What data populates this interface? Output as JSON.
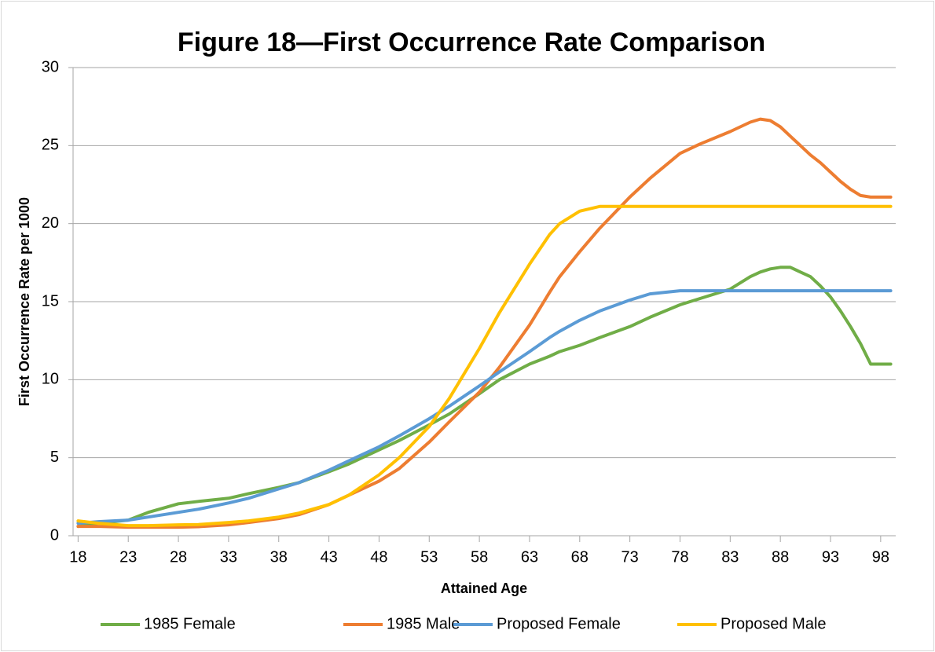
{
  "chart_data": {
    "type": "line",
    "title": "Figure 18—First Occurrence Rate Comparison",
    "x_label": "Attained Age",
    "y_label": "First Occurrence Rate per 1000",
    "x": [
      18,
      20,
      23,
      25,
      28,
      30,
      33,
      35,
      38,
      40,
      43,
      45,
      48,
      50,
      53,
      55,
      58,
      60,
      63,
      65,
      66,
      68,
      70,
      73,
      75,
      78,
      80,
      83,
      85,
      86,
      87,
      88,
      89,
      90,
      91,
      92,
      93,
      94,
      95,
      96,
      97,
      98,
      99
    ],
    "series": [
      {
        "name": "1985 Female",
        "color": "#70ad47",
        "values": [
          0.6,
          0.8,
          1.0,
          1.5,
          2.05,
          2.2,
          2.4,
          2.7,
          3.1,
          3.4,
          4.1,
          4.6,
          5.5,
          6.1,
          7.1,
          7.8,
          9.1,
          10.0,
          11.0,
          11.5,
          11.8,
          12.2,
          12.7,
          13.4,
          14.0,
          14.8,
          15.2,
          15.8,
          16.6,
          16.9,
          17.1,
          17.2,
          17.2,
          16.9,
          16.6,
          16.0,
          15.3,
          14.4,
          13.4,
          12.3,
          11.0,
          11.0,
          11.0
        ]
      },
      {
        "name": "1985 Male",
        "color": "#ed7d31",
        "values": [
          0.6,
          0.6,
          0.55,
          0.55,
          0.55,
          0.58,
          0.7,
          0.85,
          1.1,
          1.35,
          2.0,
          2.6,
          3.5,
          4.3,
          6.0,
          7.3,
          9.2,
          10.8,
          13.5,
          15.6,
          16.6,
          18.2,
          19.7,
          21.7,
          22.9,
          24.5,
          25.1,
          25.9,
          26.5,
          26.7,
          26.6,
          26.2,
          25.6,
          25.0,
          24.4,
          23.9,
          23.3,
          22.7,
          22.2,
          21.8,
          21.7,
          21.7,
          21.7
        ]
      },
      {
        "name": "Proposed Female",
        "color": "#5b9bd5",
        "values": [
          0.8,
          0.9,
          1.0,
          1.2,
          1.5,
          1.7,
          2.1,
          2.4,
          3.0,
          3.4,
          4.2,
          4.8,
          5.7,
          6.4,
          7.5,
          8.3,
          9.6,
          10.5,
          11.8,
          12.7,
          13.1,
          13.8,
          14.4,
          15.1,
          15.5,
          15.7,
          15.7,
          15.7,
          15.7,
          15.7,
          15.7,
          15.7,
          15.7,
          15.7,
          15.7,
          15.7,
          15.7,
          15.7,
          15.7,
          15.7,
          15.7,
          15.7,
          15.7
        ]
      },
      {
        "name": "Proposed Male",
        "color": "#ffc000",
        "values": [
          0.95,
          0.8,
          0.65,
          0.65,
          0.7,
          0.72,
          0.85,
          0.95,
          1.2,
          1.45,
          2.0,
          2.6,
          3.9,
          5.0,
          7.0,
          8.8,
          12.0,
          14.3,
          17.4,
          19.3,
          20.0,
          20.8,
          21.1,
          21.1,
          21.1,
          21.1,
          21.1,
          21.1,
          21.1,
          21.1,
          21.1,
          21.1,
          21.1,
          21.1,
          21.1,
          21.1,
          21.1,
          21.1,
          21.1,
          21.1,
          21.1,
          21.1,
          21.1
        ]
      }
    ],
    "xlim": [
      17.5,
      99.5
    ],
    "xticks": [
      18,
      23,
      28,
      33,
      38,
      43,
      48,
      53,
      58,
      63,
      68,
      73,
      78,
      83,
      88,
      93,
      98
    ],
    "ylim": [
      0,
      30
    ],
    "yticks": [
      0,
      5,
      10,
      15,
      20,
      25,
      30
    ],
    "grid": true,
    "legend": "bottom"
  }
}
